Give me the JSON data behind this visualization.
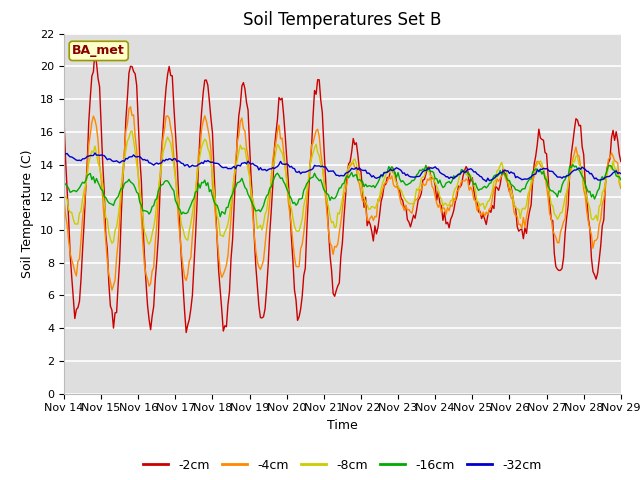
{
  "title": "Soil Temperatures Set B",
  "xlabel": "Time",
  "ylabel": "Soil Temperature (C)",
  "ylim": [
    0,
    22
  ],
  "annotation": "BA_met",
  "x_tick_labels": [
    "Nov 14",
    "Nov 15",
    "Nov 16",
    "Nov 17",
    "Nov 18",
    "Nov 19",
    "Nov 20",
    "Nov 21",
    "Nov 22",
    "Nov 23",
    "Nov 24",
    "Nov 25",
    "Nov 26",
    "Nov 27",
    "Nov 28",
    "Nov 29"
  ],
  "series_labels": [
    "-2cm",
    "-4cm",
    "-8cm",
    "-16cm",
    "-32cm"
  ],
  "series_colors": [
    "#cc0000",
    "#ff8800",
    "#cccc00",
    "#00aa00",
    "#0000cc"
  ],
  "plot_bg_color": "#dedede",
  "grid_color": "#ffffff",
  "title_fontsize": 12,
  "label_fontsize": 9,
  "tick_fontsize": 8,
  "legend_fontsize": 9
}
